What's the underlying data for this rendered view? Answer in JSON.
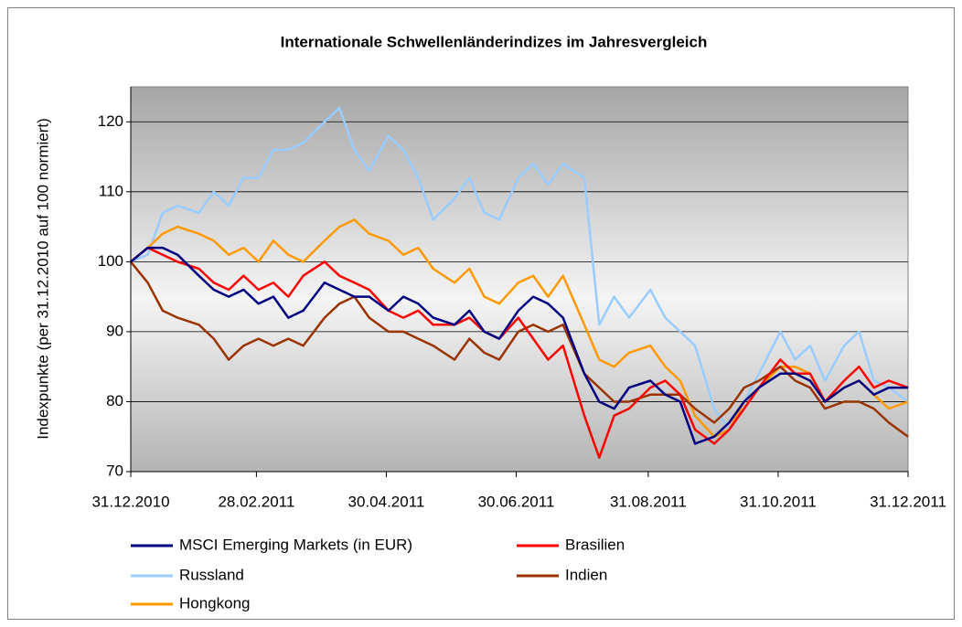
{
  "chart_data": {
    "type": "line",
    "title": "Internationale Schwellenländerindizes im Jahresvergleich",
    "y_label": "Indexpunkte (per 31.12.2010 auf 100 normiert)",
    "x": [
      "31.12.2010",
      "08.01.2011",
      "15.01.2011",
      "22.01.2011",
      "01.02.2011",
      "08.02.2011",
      "15.02.2011",
      "22.02.2011",
      "01.03.2011",
      "08.03.2011",
      "15.03.2011",
      "22.03.2011",
      "01.04.2011",
      "08.04.2011",
      "15.04.2011",
      "22.04.2011",
      "01.05.2011",
      "08.05.2011",
      "15.05.2011",
      "22.05.2011",
      "01.06.2011",
      "08.06.2011",
      "15.06.2011",
      "22.06.2011",
      "01.07.2011",
      "08.07.2011",
      "15.07.2011",
      "22.07.2011",
      "01.08.2011",
      "08.08.2011",
      "15.08.2011",
      "22.08.2011",
      "01.09.2011",
      "08.09.2011",
      "15.09.2011",
      "22.09.2011",
      "01.10.2011",
      "08.10.2011",
      "15.10.2011",
      "22.10.2011",
      "01.11.2011",
      "08.11.2011",
      "15.11.2011",
      "22.11.2011",
      "01.12.2011",
      "08.12.2011",
      "15.12.2011",
      "22.12.2011",
      "31.12.2011"
    ],
    "xlim": [
      "31.12.2010",
      "31.12.2011"
    ],
    "xticks": [
      "31.12.2010",
      "28.02.2011",
      "30.04.2011",
      "30.06.2011",
      "31.08.2011",
      "31.10.2011",
      "31.12.2011"
    ],
    "ylim": [
      70,
      125
    ],
    "yticks": [
      70,
      80,
      90,
      100,
      110,
      120
    ],
    "grid": true,
    "legend": "bottom",
    "series": [
      {
        "name": "MSCI Emerging Markets (in EUR)",
        "color": "#000080",
        "values": [
          100,
          102,
          102,
          101,
          98,
          96,
          95,
          96,
          94,
          95,
          92,
          93,
          97,
          96,
          95,
          95,
          93,
          95,
          94,
          92,
          91,
          93,
          90,
          89,
          93,
          95,
          94,
          92,
          84,
          80,
          79,
          82,
          83,
          81,
          80,
          74,
          75,
          77,
          80,
          82,
          84,
          84,
          83,
          80,
          82,
          83,
          81,
          82,
          82
        ]
      },
      {
        "name": "Brasilien",
        "color": "#ff0000",
        "values": [
          100,
          102,
          101,
          100,
          99,
          97,
          96,
          98,
          96,
          97,
          95,
          98,
          100,
          98,
          97,
          96,
          93,
          92,
          93,
          91,
          91,
          92,
          90,
          89,
          92,
          89,
          86,
          88,
          78,
          72,
          78,
          79,
          82,
          83,
          81,
          76,
          74,
          76,
          79,
          82,
          86,
          84,
          84,
          80,
          83,
          85,
          82,
          83,
          82
        ]
      },
      {
        "name": "Russland",
        "color": "#99ccff",
        "values": [
          100,
          101,
          107,
          108,
          107,
          110,
          108,
          112,
          112,
          116,
          116,
          117,
          120,
          122,
          116,
          113,
          118,
          116,
          112,
          106,
          109,
          112,
          107,
          106,
          112,
          114,
          111,
          114,
          112,
          91,
          95,
          92,
          96,
          92,
          90,
          88,
          79,
          76,
          80,
          84,
          90,
          86,
          88,
          83,
          88,
          90,
          83,
          82,
          80
        ]
      },
      {
        "name": "Indien",
        "color": "#993300",
        "values": [
          100,
          97,
          93,
          92,
          91,
          89,
          86,
          88,
          89,
          88,
          89,
          88,
          92,
          94,
          95,
          92,
          90,
          90,
          89,
          88,
          86,
          89,
          87,
          86,
          90,
          91,
          90,
          91,
          84,
          82,
          80,
          80,
          81,
          81,
          81,
          79,
          77,
          79,
          82,
          83,
          85,
          83,
          82,
          79,
          80,
          80,
          79,
          77,
          75
        ]
      },
      {
        "name": "Hongkong",
        "color": "#ff9900",
        "values": [
          100,
          102,
          104,
          105,
          104,
          103,
          101,
          102,
          100,
          103,
          101,
          100,
          103,
          105,
          106,
          104,
          103,
          101,
          102,
          99,
          97,
          99,
          95,
          94,
          97,
          98,
          95,
          98,
          91,
          86,
          85,
          87,
          88,
          85,
          83,
          78,
          75,
          76,
          80,
          82,
          85,
          85,
          84,
          80,
          82,
          83,
          81,
          79,
          80
        ]
      }
    ]
  }
}
